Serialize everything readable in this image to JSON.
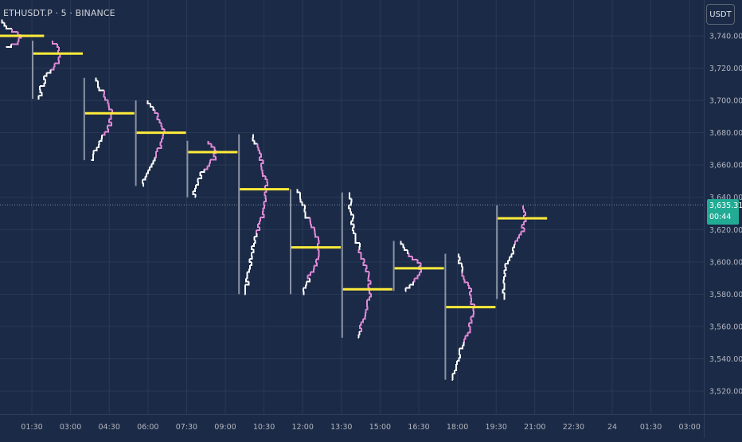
{
  "header": {
    "symbol": "ETHUSDT.P · 5 · BINANCE",
    "currency": "USDT"
  },
  "last_price": {
    "price": "3,635.31",
    "countdown": "00:44",
    "value": 3635.31
  },
  "colors": {
    "background": "#1b2a46",
    "grid": "#2a3a57",
    "axis_text": "#b2b5be",
    "poc": "#ffeb3b",
    "profile_primary": "#ffffff",
    "profile_value_area": "#e08ad8",
    "profile_axis": "#8a93a3",
    "last_price_tag": "#22ab94"
  },
  "chart_data": {
    "type": "volume-profile",
    "y_axis": {
      "range": [
        3510,
        3763
      ],
      "ticks": [
        3520,
        3540,
        3560,
        3580,
        3600,
        3620,
        3640,
        3660,
        3680,
        3700,
        3720,
        3740
      ],
      "tick_labels": [
        "3,520.00",
        "3,540.00",
        "3,560.00",
        "3,580.00",
        "3,600.00",
        "3,620.00",
        "3,640.00",
        "3,660.00",
        "3,680.00",
        "3,700.00",
        "3,720.00",
        "3,740.00"
      ]
    },
    "x_axis": {
      "tick_labels": [
        "01:30",
        "03:00",
        "04:30",
        "06:00",
        "07:30",
        "09:00",
        "10:30",
        "12:00",
        "13:30",
        "15:00",
        "16:30",
        "18:00",
        "19:30",
        "21:00",
        "22:30",
        "24",
        "01:30",
        "03:00"
      ]
    },
    "profiles": [
      {
        "start": "00:00",
        "low": 3733,
        "high": 3750,
        "poc": 3740
      },
      {
        "start": "01:30",
        "low": 3701,
        "high": 3737,
        "poc": 3729
      },
      {
        "start": "03:30",
        "low": 3663,
        "high": 3714,
        "poc": 3692
      },
      {
        "start": "05:30",
        "low": 3647,
        "high": 3700,
        "poc": 3680
      },
      {
        "start": "07:30",
        "low": 3640,
        "high": 3675,
        "poc": 3668
      },
      {
        "start": "09:30",
        "low": 3580,
        "high": 3679,
        "poc": 3645
      },
      {
        "start": "11:30",
        "low": 3580,
        "high": 3645,
        "poc": 3609
      },
      {
        "start": "13:30",
        "low": 3553,
        "high": 3643,
        "poc": 3583
      },
      {
        "start": "15:30",
        "low": 3582,
        "high": 3613,
        "poc": 3596
      },
      {
        "start": "17:30",
        "low": 3527,
        "high": 3605,
        "poc": 3572
      },
      {
        "start": "19:30",
        "low": 3577,
        "high": 3635,
        "poc": 3627
      }
    ]
  }
}
